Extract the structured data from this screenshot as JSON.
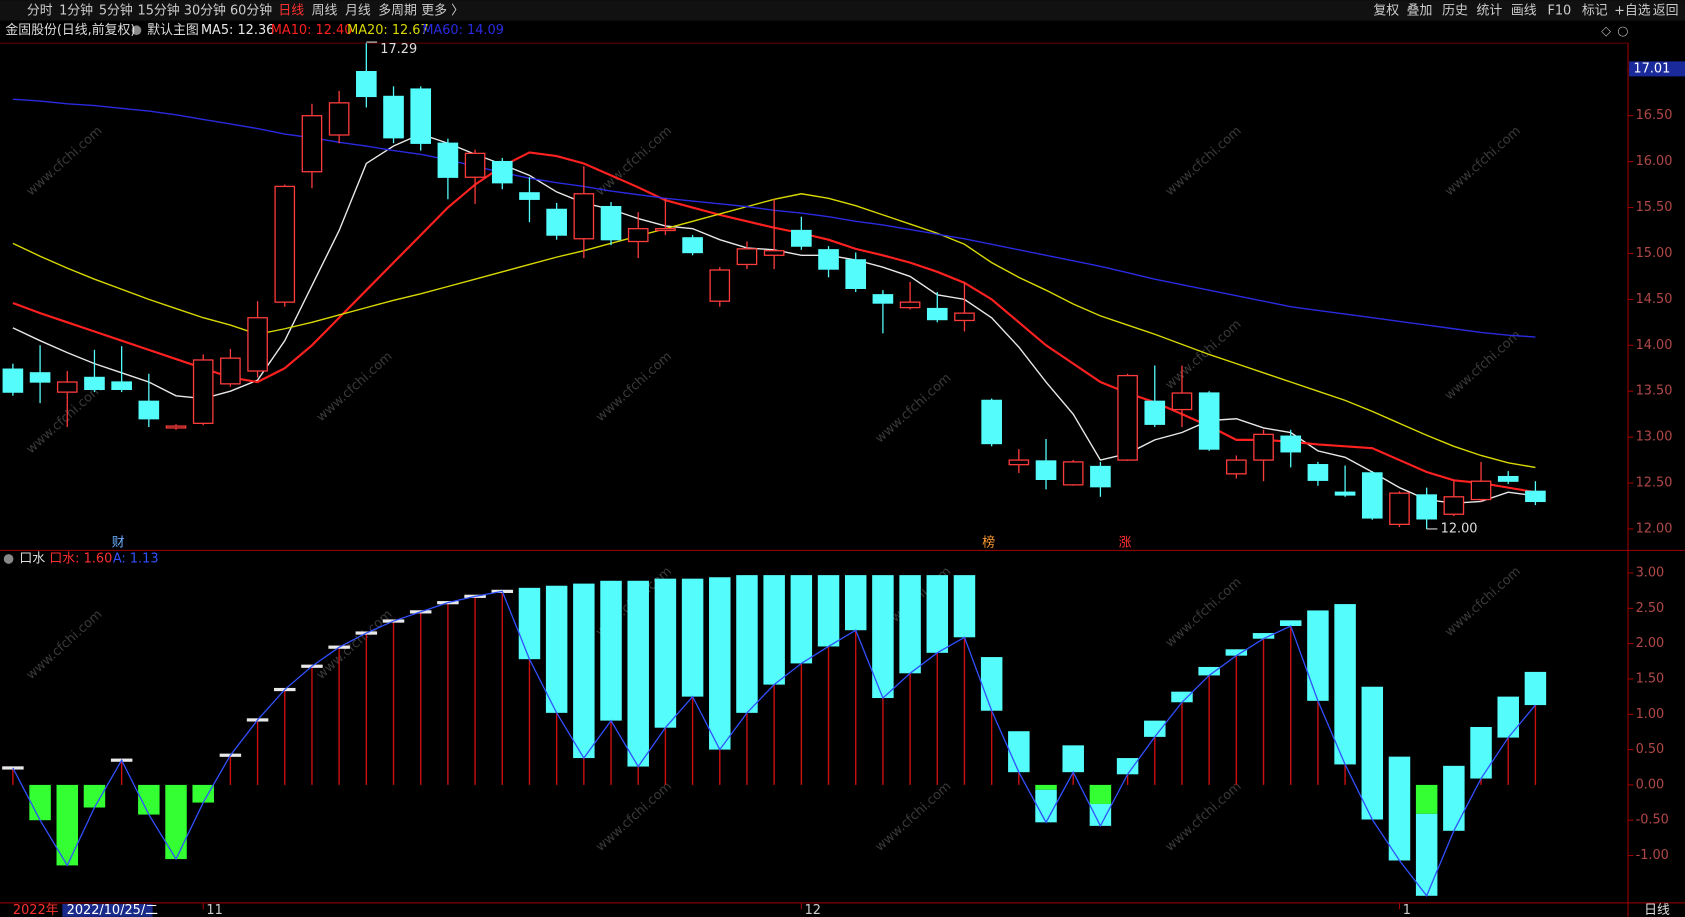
{
  "toolbar": {
    "left": [
      "分时",
      "1分钟",
      "5分钟",
      "15分钟",
      "30分钟",
      "60分钟",
      "日线",
      "周线",
      "月线",
      "多周期",
      "更多 〉"
    ],
    "right": [
      "复权",
      "叠加",
      "历史",
      "统计",
      "画线",
      "F10",
      "标记",
      "+自选",
      "返回"
    ]
  },
  "header": {
    "stock": "金固股份(日线,前复权)",
    "template": "默认主图"
  },
  "watermark": "www.cfchi.com",
  "footer": {
    "year": "2022年",
    "cursor_date": "2022/10/25/二",
    "period": "日线"
  },
  "chart_data": [
    {
      "type": "candlestick",
      "up_color": "#ff3c3c",
      "down_color": "#54fcfc",
      "categories": [
        null,
        null,
        null,
        null,
        null,
        null,
        null,
        "11",
        null,
        null,
        null,
        null,
        null,
        null,
        null,
        null,
        null,
        null,
        null,
        null,
        null,
        null,
        null,
        null,
        null,
        null,
        null,
        null,
        null,
        "12",
        null,
        null,
        null,
        null,
        null,
        null,
        null,
        null,
        null,
        null,
        null,
        null,
        null,
        null,
        null,
        null,
        null,
        null,
        null,
        null,
        null,
        "1",
        null,
        null,
        null,
        null,
        null
      ],
      "open": [
        13.74,
        13.7,
        13.49,
        13.65,
        13.6,
        13.39,
        13.1,
        13.15,
        13.58,
        13.72,
        14.47,
        15.89,
        16.29,
        16.98,
        16.71,
        16.79,
        16.2,
        15.83,
        16.0,
        15.66,
        15.48,
        15.16,
        15.51,
        15.13,
        15.25,
        15.17,
        14.48,
        14.88,
        14.98,
        15.25,
        15.04,
        14.93,
        14.55,
        14.41,
        14.4,
        14.27,
        13.4,
        12.7,
        12.74,
        12.48,
        12.68,
        12.75,
        13.39,
        13.3,
        13.48,
        12.6,
        12.75,
        13.01,
        12.7,
        12.4,
        12.61,
        12.05,
        12.37,
        12.16,
        12.32,
        12.57,
        12.41
      ],
      "high": [
        13.8,
        14.0,
        13.72,
        13.95,
        13.99,
        13.69,
        13.14,
        13.9,
        13.96,
        14.48,
        15.75,
        16.63,
        16.77,
        17.29,
        16.82,
        16.82,
        16.25,
        16.13,
        16.04,
        15.83,
        15.55,
        15.95,
        15.56,
        15.45,
        15.6,
        15.2,
        14.85,
        15.13,
        15.59,
        15.4,
        15.08,
        15.01,
        14.6,
        14.69,
        14.58,
        14.69,
        13.42,
        12.87,
        12.98,
        12.75,
        12.73,
        13.69,
        13.78,
        13.78,
        13.5,
        12.8,
        13.08,
        13.08,
        12.73,
        12.69,
        12.63,
        12.41,
        12.45,
        12.53,
        12.73,
        12.63,
        12.52
      ],
      "low": [
        13.45,
        13.37,
        13.11,
        13.49,
        13.49,
        13.11,
        13.08,
        13.13,
        13.55,
        13.65,
        14.42,
        15.71,
        16.2,
        16.59,
        16.2,
        16.12,
        15.59,
        15.54,
        15.7,
        15.34,
        15.15,
        14.95,
        15.09,
        14.95,
        15.2,
        14.98,
        14.42,
        14.83,
        14.83,
        15.04,
        14.74,
        14.58,
        14.13,
        14.39,
        14.25,
        14.15,
        12.9,
        12.61,
        12.43,
        12.47,
        12.35,
        12.74,
        13.11,
        13.11,
        12.85,
        12.55,
        12.52,
        12.67,
        12.47,
        12.35,
        12.1,
        12.02,
        12.0,
        12.14,
        12.3,
        12.49,
        12.26
      ],
      "close": [
        13.49,
        13.6,
        13.6,
        13.52,
        13.52,
        13.2,
        13.12,
        13.84,
        13.86,
        14.3,
        15.73,
        16.5,
        16.64,
        16.71,
        16.26,
        16.2,
        15.83,
        16.09,
        15.77,
        15.59,
        15.2,
        15.65,
        15.15,
        15.27,
        15.27,
        15.01,
        14.82,
        15.05,
        15.03,
        15.08,
        14.83,
        14.62,
        14.46,
        14.47,
        14.28,
        14.35,
        12.93,
        12.75,
        12.54,
        12.73,
        12.46,
        13.67,
        13.14,
        13.48,
        12.87,
        12.75,
        13.03,
        12.84,
        12.53,
        12.37,
        12.12,
        12.39,
        12.11,
        12.35,
        12.52,
        12.52,
        12.3
      ],
      "series": [
        {
          "name": "MA5: 12.36",
          "color": "#e8e8e8",
          "values": [
            14.19,
            14.05,
            13.92,
            13.8,
            13.7,
            13.6,
            13.45,
            13.42,
            13.5,
            13.62,
            14.05,
            14.65,
            15.25,
            15.98,
            16.17,
            16.3,
            16.2,
            16.08,
            15.97,
            15.85,
            15.67,
            15.55,
            15.48,
            15.38,
            15.3,
            15.27,
            15.15,
            15.06,
            15.04,
            14.98,
            14.98,
            14.93,
            14.85,
            14.75,
            14.55,
            14.5,
            14.3,
            13.98,
            13.6,
            13.25,
            12.75,
            12.82,
            12.97,
            13.05,
            13.18,
            13.2,
            13.1,
            13.05,
            12.85,
            12.78,
            12.62,
            12.45,
            12.32,
            12.28,
            12.3,
            12.4,
            12.36
          ]
        },
        {
          "name": "MA10: 12.40",
          "color": "#ff2020",
          "values": [
            14.46,
            14.35,
            14.25,
            14.15,
            14.05,
            13.95,
            13.85,
            13.75,
            13.65,
            13.6,
            13.75,
            14.0,
            14.3,
            14.6,
            14.9,
            15.2,
            15.5,
            15.75,
            15.95,
            16.1,
            16.06,
            15.98,
            15.85,
            15.72,
            15.58,
            15.5,
            15.42,
            15.35,
            15.28,
            15.22,
            15.15,
            15.05,
            14.98,
            14.9,
            14.8,
            14.68,
            14.5,
            14.25,
            14.0,
            13.8,
            13.6,
            13.48,
            13.38,
            13.25,
            13.12,
            12.97,
            12.97,
            12.95,
            12.92,
            12.9,
            12.88,
            12.75,
            12.62,
            12.53,
            12.5,
            12.45,
            12.4
          ]
        },
        {
          "name": "MA20: 12.67",
          "color": "#d8d800",
          "values": [
            15.11,
            14.97,
            14.84,
            14.72,
            14.61,
            14.5,
            14.4,
            14.3,
            14.22,
            14.12,
            14.18,
            14.25,
            14.33,
            14.41,
            14.49,
            14.56,
            14.64,
            14.72,
            14.8,
            14.88,
            14.96,
            15.03,
            15.11,
            15.19,
            15.27,
            15.35,
            15.43,
            15.51,
            15.59,
            15.65,
            15.6,
            15.52,
            15.42,
            15.32,
            15.22,
            15.1,
            14.9,
            14.74,
            14.6,
            14.45,
            14.32,
            14.22,
            14.12,
            14.01,
            13.9,
            13.8,
            13.7,
            13.6,
            13.5,
            13.4,
            13.28,
            13.15,
            13.02,
            12.9,
            12.8,
            12.72,
            12.67
          ]
        },
        {
          "name": "MA60: 14.09",
          "color": "#2a2ae0",
          "values": [
            16.68,
            16.66,
            16.63,
            16.61,
            16.58,
            16.55,
            16.51,
            16.46,
            16.41,
            16.36,
            16.3,
            16.26,
            16.21,
            16.17,
            16.12,
            16.08,
            16.02,
            15.95,
            15.88,
            15.82,
            15.77,
            15.73,
            15.68,
            15.64,
            15.6,
            15.57,
            15.54,
            15.51,
            15.47,
            15.44,
            15.4,
            15.35,
            15.31,
            15.26,
            15.21,
            15.16,
            15.1,
            15.04,
            14.98,
            14.92,
            14.86,
            14.79,
            14.72,
            14.66,
            14.6,
            14.54,
            14.48,
            14.42,
            14.38,
            14.34,
            14.3,
            14.26,
            14.22,
            14.18,
            14.14,
            14.11,
            14.09
          ]
        }
      ],
      "ylim": [
        11.79,
        17.29
      ],
      "yticks": [
        {
          "value": 17,
          "label": "17.00"
        },
        {
          "value": 16.5,
          "label": "16.50"
        },
        {
          "value": 16,
          "label": "16.00"
        },
        {
          "value": 15.5,
          "label": "15.50"
        },
        {
          "value": 15,
          "label": "15.00"
        },
        {
          "value": 14.5,
          "label": "14.50"
        },
        {
          "value": 14,
          "label": "14.00"
        },
        {
          "value": 13.5,
          "label": "13.50"
        },
        {
          "value": 13,
          "label": "13.00"
        },
        {
          "value": 12.5,
          "label": "12.50"
        },
        {
          "value": 12,
          "label": "12.00"
        }
      ],
      "cursor_tick": {
        "value": 17.01,
        "label": "17.01"
      },
      "annotations": [
        "17.29",
        "12.00"
      ],
      "markers": [
        "财",
        "榜",
        "涨"
      ]
    },
    {
      "type": "indicator",
      "title": "口水",
      "neg_color": "#33ff33",
      "box_color": "#54fcfc",
      "stem_color": "#cc1010",
      "series": [
        {
          "name": "口水: 1.60",
          "color": "#ff3030",
          "values": [
            0.24,
            -0.5,
            -1.14,
            -0.32,
            0.35,
            -0.42,
            -1.05,
            -0.25,
            0.42,
            0.92,
            1.35,
            1.68,
            1.95,
            2.15,
            2.32,
            2.45,
            2.58,
            2.67,
            2.74,
            2.79,
            2.82,
            2.85,
            2.89,
            2.89,
            2.92,
            2.92,
            2.94,
            2.97,
            2.97,
            2.97,
            2.97,
            2.97,
            2.97,
            2.97,
            2.97,
            2.97,
            1.81,
            0.76,
            -0.07,
            0.56,
            -0.27,
            0.38,
            0.91,
            1.32,
            1.67,
            1.92,
            2.15,
            2.33,
            2.47,
            2.56,
            1.39,
            0.4,
            -0.41,
            0.27,
            0.82,
            1.25,
            1.6
          ]
        },
        {
          "name": "A: 1.13",
          "color": "#3050ff",
          "values": [
            0.24,
            -0.5,
            -1.14,
            -0.32,
            0.35,
            -0.42,
            -1.05,
            -0.25,
            0.42,
            0.92,
            1.35,
            1.68,
            1.95,
            2.15,
            2.32,
            2.45,
            2.58,
            2.67,
            2.74,
            1.78,
            1.02,
            0.38,
            0.91,
            0.26,
            0.81,
            1.25,
            0.5,
            1.02,
            1.42,
            1.72,
            1.96,
            2.19,
            1.23,
            1.58,
            1.87,
            2.09,
            1.05,
            0.18,
            -0.53,
            0.18,
            -0.58,
            0.15,
            0.68,
            1.17,
            1.55,
            1.83,
            2.07,
            2.25,
            1.19,
            0.29,
            -0.49,
            -1.07,
            -1.57,
            -0.65,
            0.09,
            0.67,
            1.13
          ]
        }
      ],
      "ylim": [
        -1.67,
        3.29
      ],
      "yticks": [
        {
          "value": 3,
          "label": "3.00"
        },
        {
          "value": 2.5,
          "label": "2.50"
        },
        {
          "value": 2,
          "label": "2.00"
        },
        {
          "value": 1.5,
          "label": "1.50"
        },
        {
          "value": 1,
          "label": "1.00"
        },
        {
          "value": 0.5,
          "label": "0.50"
        },
        {
          "value": 0,
          "label": "0.00"
        },
        {
          "value": -0.5,
          "label": "-0.50"
        },
        {
          "value": -1,
          "label": "-1.00"
        }
      ]
    }
  ]
}
